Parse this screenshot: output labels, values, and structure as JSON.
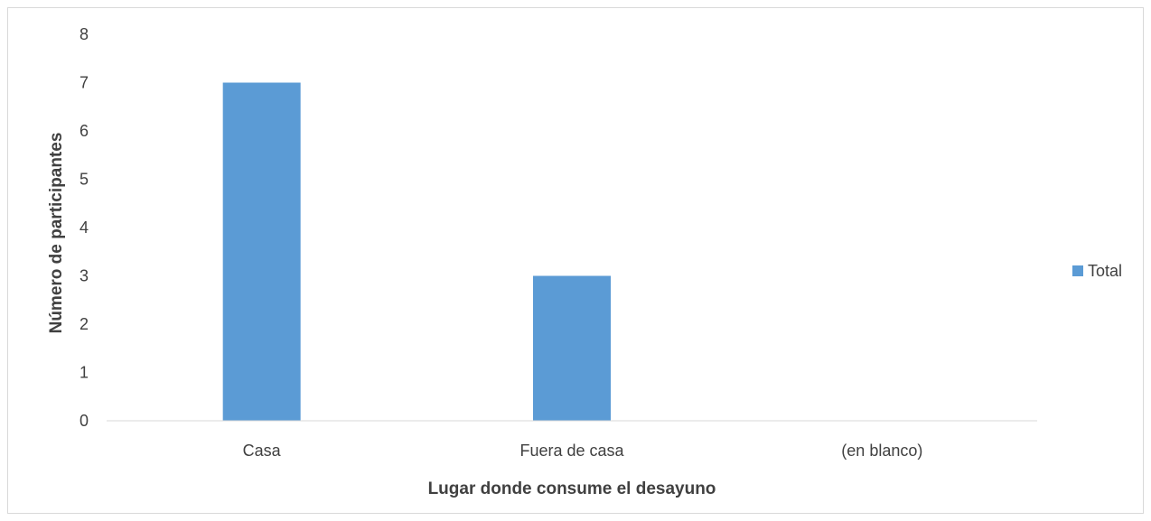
{
  "chart_data": {
    "type": "bar",
    "title": "",
    "xlabel": "Lugar donde consume el desayuno",
    "ylabel": "Número de participantes",
    "categories": [
      "Casa",
      "Fuera de casa",
      "(en blanco)"
    ],
    "series": [
      {
        "name": "Total",
        "values": [
          7,
          3,
          0
        ],
        "color": "#5b9bd5"
      }
    ],
    "ylim": [
      0,
      8
    ],
    "yticks": [
      0,
      1,
      2,
      3,
      4,
      5,
      6,
      7,
      8
    ],
    "grid": false,
    "legend_position": "right"
  }
}
